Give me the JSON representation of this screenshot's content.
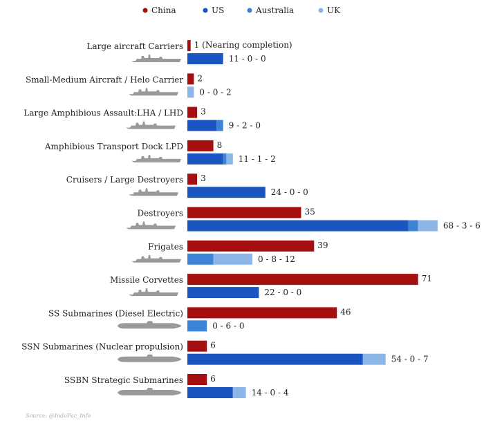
{
  "chart_data": {
    "type": "bar",
    "orientation": "horizontal",
    "legend": {
      "placement": "top",
      "items": [
        {
          "name": "China",
          "color": "#a50f0f"
        },
        {
          "name": "US",
          "color": "#1a55c0"
        },
        {
          "name": "Australia",
          "color": "#3d84d6"
        },
        {
          "name": "UK",
          "color": "#8cb6e8"
        }
      ]
    },
    "categories": [
      "Large aircraft Carriers",
      "Small-Medium Aircraft / Helo Carrier",
      "Large Amphibious Assault:LHA / LHD",
      "Amphibious Transport Dock LPD",
      "Cruisers / Large Destroyers",
      "Destroyers",
      "Frigates",
      "Missile Corvettes",
      "SS Submarines (Diesel Electric)",
      "SSN Submarines (Nuclear propulsion)",
      "SSBN Strategic Submarines"
    ],
    "china": {
      "values": [
        1,
        2,
        3,
        8,
        3,
        35,
        39,
        71,
        46,
        6,
        6
      ],
      "labels": [
        "1 (Nearing completion)",
        "2",
        "3",
        "8",
        "3",
        "35",
        "39",
        "71",
        "46",
        "6",
        "6"
      ]
    },
    "allies": {
      "us": [
        11,
        0,
        9,
        11,
        24,
        68,
        0,
        22,
        0,
        54,
        14
      ],
      "australia": [
        0,
        0,
        2,
        1,
        0,
        3,
        8,
        0,
        6,
        0,
        0
      ],
      "uk": [
        0,
        2,
        0,
        2,
        0,
        6,
        12,
        0,
        0,
        7,
        4
      ],
      "labels": [
        "11 - 0 - 0",
        "0 - 0 - 2",
        "9 - 2 - 0",
        "11 - 1 - 2",
        "24 - 0 - 0",
        "68 - 3 - 6",
        "0 - 8 - 12",
        "22 - 0 - 0",
        "0 - 6 - 0",
        "54 - 0 - 7",
        "14 - 0 - 4"
      ]
    },
    "source": "Source: @IndoPac_Info",
    "grid": false,
    "ship_icon": "ship-silhouette-icon"
  }
}
